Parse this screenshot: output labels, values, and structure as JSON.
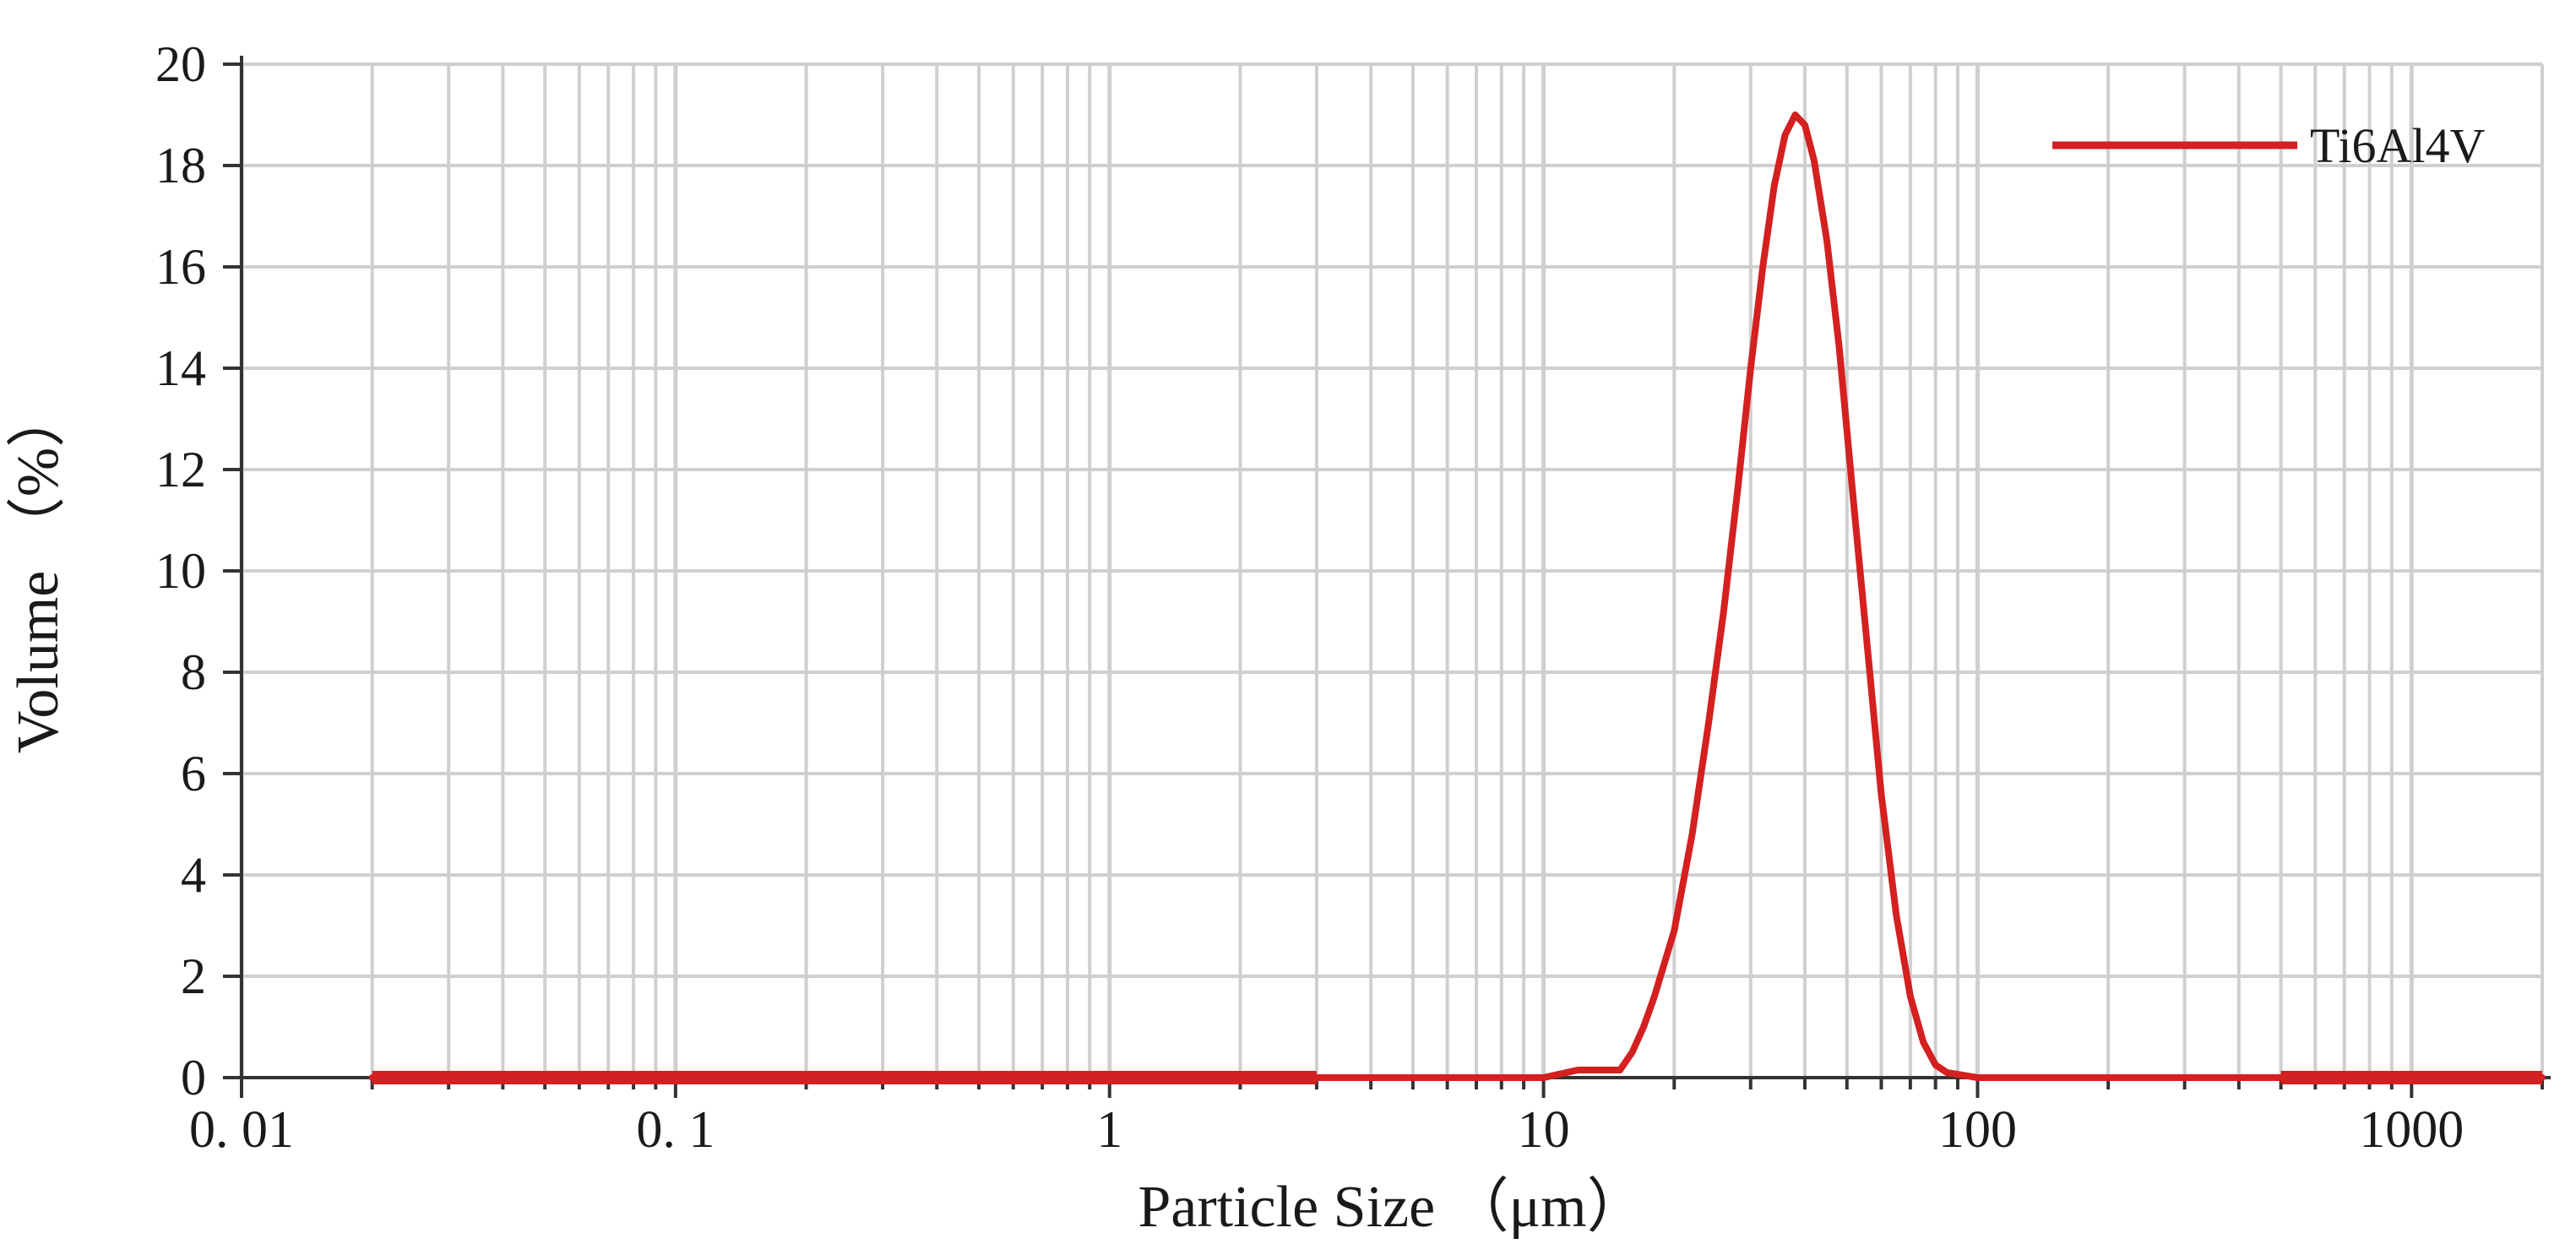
{
  "chart_data": {
    "type": "line",
    "title": "",
    "xlabel": "Particle Size （μm）",
    "ylabel": "Volume （%）",
    "x_scale": "log",
    "xlim": [
      0.01,
      2000
    ],
    "ylim": [
      0,
      20
    ],
    "grid": true,
    "legend_position": "top-right",
    "x_ticks": [
      {
        "value": 0.01,
        "label": "0. 01"
      },
      {
        "value": 0.1,
        "label": "0. 1"
      },
      {
        "value": 1,
        "label": "1"
      },
      {
        "value": 10,
        "label": "10"
      },
      {
        "value": 100,
        "label": "100"
      },
      {
        "value": 1000,
        "label": "1000"
      }
    ],
    "y_ticks": [
      {
        "value": 0,
        "label": "0"
      },
      {
        "value": 2,
        "label": "2"
      },
      {
        "value": 4,
        "label": "4"
      },
      {
        "value": 6,
        "label": "6"
      },
      {
        "value": 8,
        "label": "8"
      },
      {
        "value": 10,
        "label": "10"
      },
      {
        "value": 12,
        "label": "12"
      },
      {
        "value": 14,
        "label": "14"
      },
      {
        "value": 16,
        "label": "16"
      },
      {
        "value": 18,
        "label": "18"
      },
      {
        "value": 20,
        "label": "20"
      }
    ],
    "series": [
      {
        "name": "Ti6Al4V",
        "color": "#d42020",
        "points": [
          [
            0.02,
            0
          ],
          [
            3,
            0
          ],
          [
            10,
            0
          ],
          [
            12,
            0.15
          ],
          [
            15,
            0.15
          ],
          [
            16,
            0.5
          ],
          [
            17,
            1.0
          ],
          [
            18,
            1.6
          ],
          [
            20,
            2.9
          ],
          [
            22,
            4.8
          ],
          [
            24,
            7.0
          ],
          [
            26,
            9.2
          ],
          [
            28,
            11.6
          ],
          [
            30,
            14.0
          ],
          [
            32,
            16.0
          ],
          [
            34,
            17.6
          ],
          [
            36,
            18.6
          ],
          [
            38,
            19.0
          ],
          [
            40,
            18.8
          ],
          [
            42,
            18.1
          ],
          [
            45,
            16.5
          ],
          [
            48,
            14.4
          ],
          [
            52,
            11.2
          ],
          [
            56,
            8.3
          ],
          [
            60,
            5.6
          ],
          [
            65,
            3.2
          ],
          [
            70,
            1.6
          ],
          [
            75,
            0.7
          ],
          [
            80,
            0.25
          ],
          [
            85,
            0.1
          ],
          [
            100,
            0
          ],
          [
            500,
            0
          ],
          [
            2000,
            0
          ]
        ]
      }
    ]
  }
}
